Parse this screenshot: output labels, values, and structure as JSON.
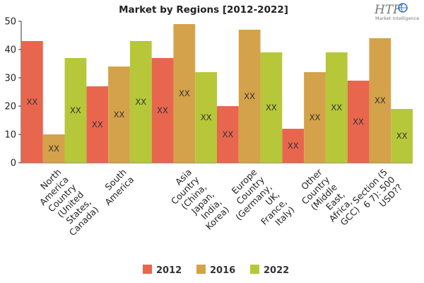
{
  "chart_data": {
    "type": "bar",
    "title": "Market by Regions [2012-2022]",
    "xlabel": "",
    "ylabel": "",
    "ylim": [
      0,
      50
    ],
    "yticks": [
      0,
      10,
      20,
      30,
      40,
      50
    ],
    "grid": false,
    "legend_position": "bottom",
    "categories": [
      "North America Country (United States, Canada)",
      "South America",
      "Asia Country (China, Japan, India, Korea)",
      "Europe Country (Germany, UK, France, Italy)",
      "Other Country (Middle East, Africa, GCC)",
      "Section (5 6 7): 500 USD??"
    ],
    "category_label_lines": [
      [
        "North",
        "America",
        "Country",
        "(United",
        "States,",
        "Canada)"
      ],
      [
        "South",
        "America"
      ],
      [
        "Asia",
        "Country",
        "(China,",
        "Japan,",
        "India,",
        "Korea)"
      ],
      [
        "Europe",
        "Country",
        "(Germany,",
        "UK,",
        "France,",
        "Italy)"
      ],
      [
        "Other",
        "Country",
        "(Middle",
        "East,",
        "Africa,",
        "GCC)"
      ],
      [
        "Section (5",
        "6 7): 500",
        "USD??"
      ]
    ],
    "series": [
      {
        "name": "2012",
        "color": "#e8664e",
        "values": [
          43,
          27,
          37,
          20,
          12,
          29
        ]
      },
      {
        "name": "2016",
        "color": "#d4a24a",
        "values": [
          10,
          34,
          49,
          47,
          32,
          44
        ]
      },
      {
        "name": "2022",
        "color": "#b6c73a",
        "values": [
          37,
          43,
          32,
          39,
          39,
          19
        ]
      }
    ],
    "data_label": "XX"
  },
  "logo": {
    "main": "HTF",
    "sub": "Market Intelligence",
    "accent_color": "#3a78c0"
  }
}
